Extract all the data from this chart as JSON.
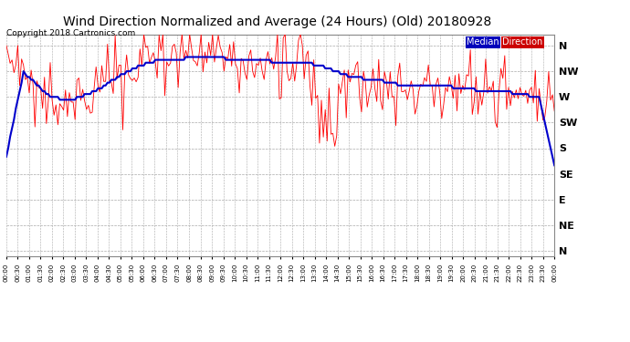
{
  "title": "Wind Direction Normalized and Average (24 Hours) (Old) 20180928",
  "copyright": "Copyright 2018 Cartronics.com",
  "background_color": "#ffffff",
  "plot_bg_color": "#ffffff",
  "grid_color": "#aaaaaa",
  "ytick_labels": [
    "N",
    "NW",
    "W",
    "SW",
    "S",
    "SE",
    "E",
    "NE",
    "N"
  ],
  "ytick_values": [
    360,
    315,
    270,
    225,
    180,
    135,
    90,
    45,
    0
  ],
  "ylim": [
    -10,
    380
  ],
  "legend_median_bg": "#0000bb",
  "legend_direction_bg": "#cc0000",
  "legend_text_color": "#ffffff",
  "median_line_color": "#0000cc",
  "direction_line_color": "#ff0000",
  "n_points": 288,
  "title_fontsize": 10,
  "copyright_fontsize": 6.5,
  "ytick_fontsize": 8,
  "xtick_fontsize": 5
}
